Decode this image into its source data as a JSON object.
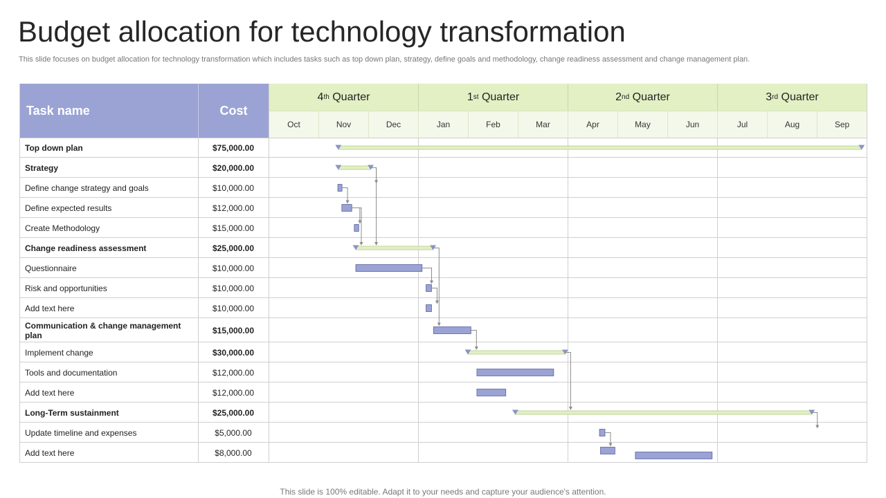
{
  "title": "Budget allocation for technology transformation",
  "subtitle": "This slide focuses on budget allocation for technology transformation which includes tasks such as top down plan, strategy, define goals and methodology, change readiness assessment and change management plan.",
  "footer": "This slide is 100% editable. Adapt it to your needs and capture your audience's attention.",
  "headers": {
    "task": "Task name",
    "cost": "Cost"
  },
  "quarters": [
    {
      "num": "4",
      "sup": "th",
      "label": "Quarter"
    },
    {
      "num": "1",
      "sup": "st",
      "label": "Quarter"
    },
    {
      "num": "2",
      "sup": "nd",
      "label": "Quarter"
    },
    {
      "num": "3",
      "sup": "rd",
      "label": "Quarter"
    }
  ],
  "months": [
    "Oct",
    "Nov",
    "Dec",
    "Jan",
    "Feb",
    "Mar",
    "Apr",
    "May",
    "Jun",
    "Jul",
    "Aug",
    "Sep"
  ],
  "colors": {
    "header": "#9aa3d4",
    "quarter": "#e2f0c4",
    "task_bar": "#9aa3d4",
    "summary_bar": "#e2f0c4",
    "marker": "#8a93c6"
  },
  "rows": [
    {
      "task": "Top down plan",
      "cost": "$75,000.00",
      "bold": true,
      "cost_bold": true,
      "type": "summary",
      "start": 1.4,
      "end": 11.9
    },
    {
      "task": "Strategy",
      "cost": "$20,000.00",
      "bold": true,
      "cost_bold": true,
      "type": "summary",
      "start": 1.4,
      "end": 2.05
    },
    {
      "task": "Define change strategy and goals",
      "cost": "$10,000.00",
      "bold": false,
      "cost_bold": false,
      "type": "task",
      "start": 1.39,
      "end": 1.47
    },
    {
      "task": "Define expected results",
      "cost": "$12,000.00",
      "bold": false,
      "cost_bold": false,
      "type": "task",
      "start": 1.47,
      "end": 1.67
    },
    {
      "task": "Create Methodology",
      "cost": "$15,000.00",
      "bold": false,
      "cost_bold": false,
      "type": "task",
      "start": 1.72,
      "end": 1.81
    },
    {
      "task": "Change readiness assessment",
      "cost": "$25,000.00",
      "bold": true,
      "cost_bold": true,
      "type": "summary",
      "start": 1.75,
      "end": 3.3
    },
    {
      "task": "Questionnaire",
      "cost": "$10,000.00",
      "bold": false,
      "cost_bold": false,
      "type": "task",
      "start": 1.75,
      "end": 3.08
    },
    {
      "task": "Risk and opportunities",
      "cost": "$10,000.00",
      "bold": false,
      "cost_bold": false,
      "type": "task",
      "start": 3.16,
      "end": 3.27
    },
    {
      "task": "Add text here",
      "cost": "$10,000.00",
      "bold": false,
      "cost_bold": false,
      "type": "task",
      "start": 3.16,
      "end": 3.27
    },
    {
      "task": "Communication & change management plan",
      "cost": "$15,000.00",
      "bold": true,
      "cost_bold": true,
      "type": "task",
      "start": 3.31,
      "end": 4.06
    },
    {
      "task": "Implement change",
      "cost": "$30,000.00",
      "bold": false,
      "cost_bold": true,
      "type": "summary",
      "start": 4.0,
      "end": 5.95
    },
    {
      "task": "Tools and documentation",
      "cost": "$12,000.00",
      "bold": false,
      "cost_bold": false,
      "type": "task",
      "start": 4.18,
      "end": 5.72
    },
    {
      "task": "Add text here",
      "cost": "$12,000.00",
      "bold": false,
      "cost_bold": false,
      "type": "task",
      "start": 4.18,
      "end": 4.76
    },
    {
      "task": "Long-Term sustainment",
      "cost": "$25,000.00",
      "bold": true,
      "cost_bold": true,
      "type": "summary",
      "start": 4.95,
      "end": 10.9
    },
    {
      "task": "Update timeline and expenses",
      "cost": "$5,000.00",
      "bold": false,
      "cost_bold": false,
      "type": "task",
      "start": 6.64,
      "end": 6.75
    },
    {
      "task": "Add text here",
      "cost": "$8,000.00",
      "bold": false,
      "cost_bold": false,
      "type": "task",
      "start": 6.66,
      "end": 6.95
    },
    {
      "task": "Add text here",
      "cost": "$8,000.00",
      "bold": false,
      "cost_bold": false,
      "type": "task",
      "start": 7.36,
      "end": 8.9
    }
  ],
  "dependencies": [
    [
      1,
      2
    ],
    [
      2,
      3
    ],
    [
      3,
      4
    ],
    [
      3,
      5
    ],
    [
      1,
      5
    ],
    [
      5,
      9
    ],
    [
      6,
      7
    ],
    [
      7,
      8
    ],
    [
      9,
      10
    ],
    [
      10,
      13
    ],
    [
      13,
      14
    ],
    [
      14,
      15
    ]
  ]
}
